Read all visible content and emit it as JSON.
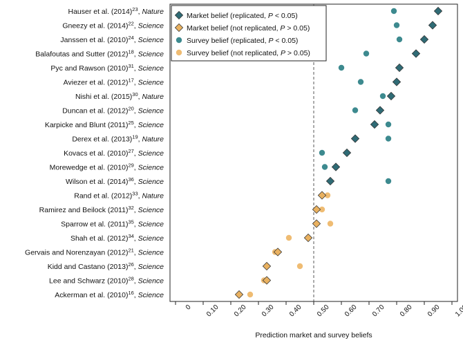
{
  "chart_data": {
    "type": "scatter",
    "xlabel": "Prediction market and survey beliefs",
    "xlim": [
      0,
      1.0
    ],
    "xticks": [
      "0",
      "0.10",
      "0.20",
      "0.30",
      "0.40",
      "0.50",
      "0.60",
      "0.70",
      "0.80",
      "0.90",
      "1.00"
    ],
    "reference_line": 0.5,
    "legend_position": "top-left",
    "colors": {
      "replicated": "#3b7a80",
      "not_replicated": "#e3a95a",
      "market_replicated_fill": "#2f6b75",
      "survey_replicated_fill": "#3d8a8f",
      "market_not_replicated_fill": "#e9b160",
      "survey_not_replicated_fill": "#efbc73"
    },
    "legend": [
      {
        "marker": "diamond",
        "color_key": "market_replicated_fill",
        "text": "Market belief (replicated, ",
        "p_text": "P",
        "cond_text": " < 0.05)"
      },
      {
        "marker": "diamond",
        "color_key": "market_not_replicated_fill",
        "text": "Market belief (not replicated, ",
        "p_text": "P",
        "cond_text": " > 0.05)"
      },
      {
        "marker": "circle",
        "color_key": "survey_replicated_fill",
        "text": "Survey belief (replicated, ",
        "p_text": "P",
        "cond_text": " < 0.05)"
      },
      {
        "marker": "circle",
        "color_key": "survey_not_replicated_fill",
        "text": "Survey belief (not replicated, ",
        "p_text": "P",
        "cond_text": " > 0.05)"
      }
    ],
    "studies": [
      {
        "name": "Hauser et al. (2014)",
        "ref": "23",
        "journal": "Nature",
        "replicated": true,
        "market": 0.95,
        "survey": 0.79
      },
      {
        "name": "Gneezy et al. (2014)",
        "ref": "22",
        "journal": "Science",
        "replicated": true,
        "market": 0.93,
        "survey": 0.8
      },
      {
        "name": "Janssen et al. (2010)",
        "ref": "24",
        "journal": "Science",
        "replicated": true,
        "market": 0.9,
        "survey": 0.81
      },
      {
        "name": "Balafoutas and Sutter (2012)",
        "ref": "18",
        "journal": "Science",
        "replicated": true,
        "market": 0.87,
        "survey": 0.69
      },
      {
        "name": "Pyc and Rawson (2010)",
        "ref": "31",
        "journal": "Science",
        "replicated": true,
        "market": 0.81,
        "survey": 0.6
      },
      {
        "name": "Aviezer et al. (2012)",
        "ref": "17",
        "journal": "Science",
        "replicated": true,
        "market": 0.8,
        "survey": 0.67
      },
      {
        "name": "Nishi et al. (2015)",
        "ref": "30",
        "journal": "Nature",
        "replicated": true,
        "market": 0.78,
        "survey": 0.75
      },
      {
        "name": "Duncan et al. (2012)",
        "ref": "20",
        "journal": "Science",
        "replicated": true,
        "market": 0.74,
        "survey": 0.65
      },
      {
        "name": "Karpicke and Blunt (2011)",
        "ref": "25",
        "journal": "Science",
        "replicated": true,
        "market": 0.72,
        "survey": 0.77
      },
      {
        "name": "Derex et al. (2013)",
        "ref": "19",
        "journal": "Nature",
        "replicated": true,
        "market": 0.65,
        "survey": 0.77
      },
      {
        "name": "Kovacs et al. (2010)",
        "ref": "27",
        "journal": "Science",
        "replicated": true,
        "market": 0.62,
        "survey": 0.53
      },
      {
        "name": "Morewedge et al. (2010)",
        "ref": "29",
        "journal": "Science",
        "replicated": true,
        "market": 0.58,
        "survey": 0.54
      },
      {
        "name": "Wilson et al. (2014)",
        "ref": "36",
        "journal": "Science",
        "replicated": true,
        "market": 0.56,
        "survey": 0.77
      },
      {
        "name": "Rand et al. (2012)",
        "ref": "33",
        "journal": "Nature",
        "replicated": false,
        "market": 0.53,
        "survey": 0.55
      },
      {
        "name": "Ramirez and Beilock (2011)",
        "ref": "32",
        "journal": "Science",
        "replicated": false,
        "market": 0.51,
        "survey": 0.53
      },
      {
        "name": "Sparrow et al. (2011)",
        "ref": "35",
        "journal": "Science",
        "replicated": false,
        "market": 0.51,
        "survey": 0.56
      },
      {
        "name": "Shah et al. (2012)",
        "ref": "34",
        "journal": "Science",
        "replicated": false,
        "market": 0.48,
        "survey": 0.41
      },
      {
        "name": "Gervais and Norenzayan (2012)",
        "ref": "21",
        "journal": "Science",
        "replicated": false,
        "market": 0.37,
        "survey": 0.36
      },
      {
        "name": "Kidd and Castano (2013)",
        "ref": "26",
        "journal": "Science",
        "replicated": false,
        "market": 0.33,
        "survey": 0.45
      },
      {
        "name": "Lee and Schwarz (2010)",
        "ref": "28",
        "journal": "Science",
        "replicated": false,
        "market": 0.33,
        "survey": 0.32
      },
      {
        "name": "Ackerman et al. (2010)",
        "ref": "16",
        "journal": "Science",
        "replicated": false,
        "market": 0.23,
        "survey": 0.27
      }
    ]
  }
}
